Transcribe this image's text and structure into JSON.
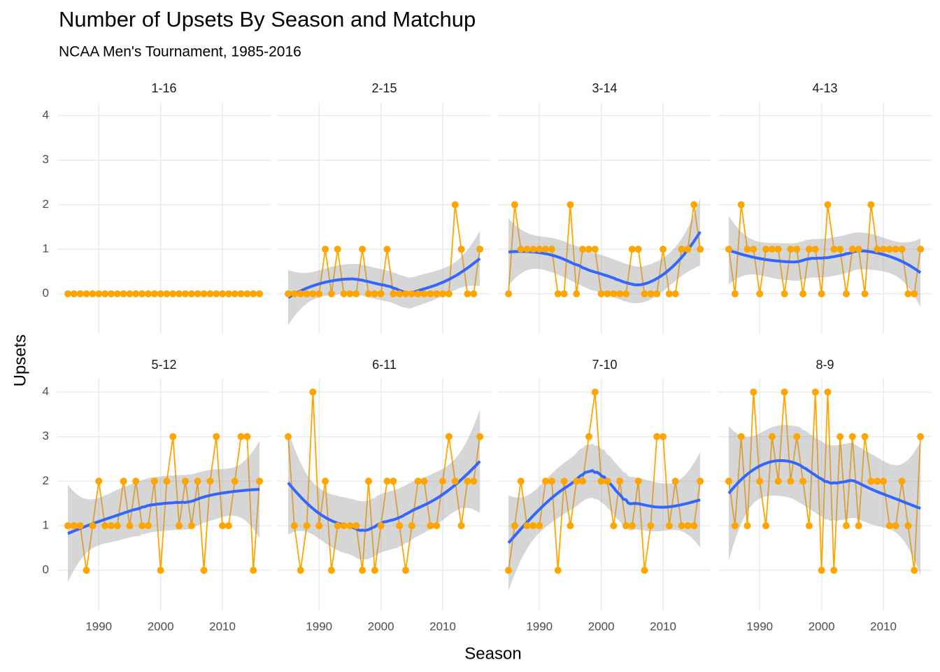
{
  "chart_data": {
    "type": "line",
    "title": "Number of Upsets By Season and Matchup",
    "subtitle": "NCAA Men's Tournament, 1985-2016",
    "x_label": "Season",
    "y_label": "Upsets",
    "x": [
      1985,
      1986,
      1987,
      1988,
      1989,
      1990,
      1991,
      1992,
      1993,
      1994,
      1995,
      1996,
      1997,
      1998,
      1999,
      2000,
      2001,
      2002,
      2003,
      2004,
      2005,
      2006,
      2007,
      2008,
      2009,
      2010,
      2011,
      2012,
      2013,
      2014,
      2015,
      2016
    ],
    "xlim": [
      1983.3,
      2017.8
    ],
    "xticks": [
      1990,
      2000,
      2010
    ],
    "ylim": [
      -0.9,
      4.3
    ],
    "yticks": [
      0,
      1,
      2,
      3,
      4
    ],
    "grid": true,
    "point_color": "#FFA500",
    "line_color": "#FFA500",
    "smooth": "loess",
    "smooth_color": "#3366FF",
    "band_color": "#999999",
    "facets": [
      {
        "name": "1-16",
        "values": [
          0,
          0,
          0,
          0,
          0,
          0,
          0,
          0,
          0,
          0,
          0,
          0,
          0,
          0,
          0,
          0,
          0,
          0,
          0,
          0,
          0,
          0,
          0,
          0,
          0,
          0,
          0,
          0,
          0,
          0,
          0,
          0
        ]
      },
      {
        "name": "2-15",
        "values": [
          0,
          0,
          0,
          0,
          0,
          0,
          1,
          0,
          1,
          0,
          0,
          0,
          1,
          0,
          0,
          0,
          1,
          0,
          0,
          0,
          0,
          0,
          0,
          0,
          0,
          0,
          0,
          2,
          1,
          0,
          0,
          1
        ]
      },
      {
        "name": "3-14",
        "values": [
          0,
          2,
          1,
          1,
          1,
          1,
          1,
          1,
          0,
          0,
          2,
          0,
          1,
          1,
          1,
          0,
          0,
          0,
          0,
          0,
          1,
          1,
          0,
          0,
          0,
          1,
          0,
          0,
          1,
          1,
          2,
          1
        ]
      },
      {
        "name": "4-13",
        "values": [
          1,
          0,
          2,
          1,
          1,
          0,
          1,
          1,
          1,
          0,
          1,
          1,
          0,
          1,
          1,
          0,
          2,
          1,
          1,
          0,
          1,
          1,
          0,
          2,
          1,
          1,
          1,
          1,
          1,
          0,
          0,
          1
        ]
      },
      {
        "name": "5-12",
        "values": [
          1,
          1,
          1,
          0,
          1,
          2,
          1,
          1,
          1,
          2,
          1,
          2,
          1,
          1,
          2,
          0,
          2,
          3,
          1,
          2,
          1,
          2,
          0,
          2,
          3,
          1,
          1,
          2,
          3,
          3,
          0,
          2
        ]
      },
      {
        "name": "6-11",
        "values": [
          3,
          1,
          0,
          1,
          4,
          1,
          2,
          0,
          1,
          1,
          1,
          1,
          0,
          2,
          0,
          1,
          2,
          2,
          1,
          0,
          1,
          2,
          2,
          1,
          1,
          2,
          3,
          2,
          1,
          2,
          2,
          3
        ]
      },
      {
        "name": "7-10",
        "values": [
          0,
          1,
          2,
          1,
          1,
          1,
          2,
          2,
          0,
          2,
          1,
          2,
          2,
          3,
          4,
          2,
          2,
          1,
          2,
          1,
          1,
          2,
          0,
          1,
          3,
          3,
          1,
          2,
          1,
          1,
          1,
          2
        ]
      },
      {
        "name": "8-9",
        "values": [
          2,
          1,
          3,
          1,
          4,
          2,
          1,
          3,
          2,
          4,
          2,
          3,
          2,
          1,
          4,
          0,
          4,
          0,
          3,
          1,
          3,
          1,
          3,
          2,
          2,
          2,
          1,
          1,
          2,
          1,
          0,
          3
        ]
      }
    ]
  }
}
